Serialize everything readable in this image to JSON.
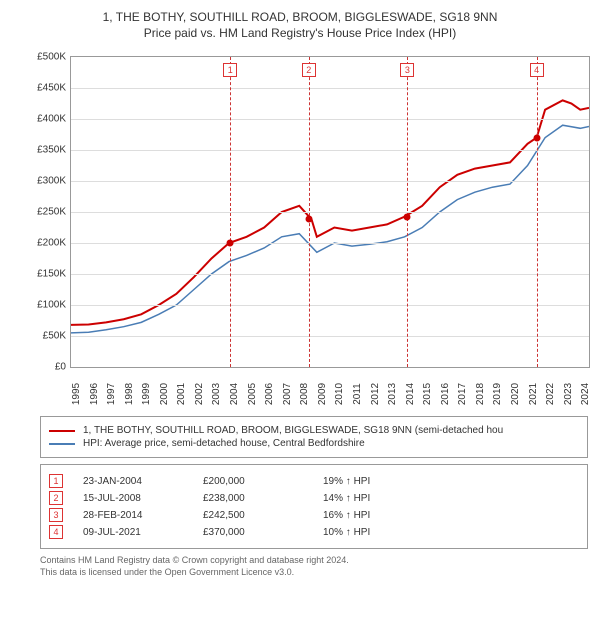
{
  "title": "1, THE BOTHY, SOUTHILL ROAD, BROOM, BIGGLESWADE, SG18 9NN",
  "subtitle": "Price paid vs. HM Land Registry's House Price Index (HPI)",
  "chart": {
    "type": "line",
    "background_color": "#ffffff",
    "grid_color": "#dddddd",
    "axis_color": "#999999",
    "title_fontsize": 12,
    "label_fontsize": 10,
    "x_min_year": 1995,
    "x_max_year": 2024.5,
    "x_ticks": [
      1995,
      1996,
      1997,
      1998,
      1999,
      2000,
      2001,
      2002,
      2003,
      2004,
      2005,
      2006,
      2007,
      2008,
      2009,
      2010,
      2011,
      2012,
      2013,
      2014,
      2015,
      2016,
      2017,
      2018,
      2019,
      2020,
      2021,
      2022,
      2023,
      2024
    ],
    "ylim": [
      0,
      500000
    ],
    "ytick_step": 50000,
    "y_prefix": "£",
    "y_suffix": "K",
    "vlines": [
      {
        "year": 2004.07,
        "label": "1"
      },
      {
        "year": 2008.54,
        "label": "2"
      },
      {
        "year": 2014.16,
        "label": "3"
      },
      {
        "year": 2021.52,
        "label": "4"
      }
    ],
    "vline_color": "#cc3333",
    "series": [
      {
        "name": "property",
        "label": "1, THE BOTHY, SOUTHILL ROAD, BROOM, BIGGLESWADE, SG18 9NN (semi-detached hou",
        "color": "#cc0000",
        "line_width": 2,
        "points": [
          [
            1995,
            68000
          ],
          [
            1996,
            68500
          ],
          [
            1997,
            72000
          ],
          [
            1998,
            77000
          ],
          [
            1999,
            85000
          ],
          [
            2000,
            100000
          ],
          [
            2001,
            118000
          ],
          [
            2002,
            145000
          ],
          [
            2003,
            175000
          ],
          [
            2004,
            200000
          ],
          [
            2005,
            210000
          ],
          [
            2006,
            225000
          ],
          [
            2007,
            250000
          ],
          [
            2008,
            260000
          ],
          [
            2008.7,
            238000
          ],
          [
            2009,
            210000
          ],
          [
            2010,
            225000
          ],
          [
            2011,
            220000
          ],
          [
            2012,
            225000
          ],
          [
            2013,
            230000
          ],
          [
            2014,
            242500
          ],
          [
            2015,
            260000
          ],
          [
            2016,
            290000
          ],
          [
            2017,
            310000
          ],
          [
            2018,
            320000
          ],
          [
            2019,
            325000
          ],
          [
            2020,
            330000
          ],
          [
            2021,
            360000
          ],
          [
            2021.52,
            370000
          ],
          [
            2022,
            415000
          ],
          [
            2023,
            430000
          ],
          [
            2023.5,
            425000
          ],
          [
            2024,
            415000
          ],
          [
            2024.5,
            418000
          ]
        ],
        "sale_points": [
          {
            "year": 2004.07,
            "price": 200000
          },
          {
            "year": 2008.54,
            "price": 238000
          },
          {
            "year": 2014.16,
            "price": 242500
          },
          {
            "year": 2021.52,
            "price": 370000
          }
        ]
      },
      {
        "name": "hpi",
        "label": "HPI: Average price, semi-detached house, Central Bedfordshire",
        "color": "#4a7db5",
        "line_width": 1.5,
        "points": [
          [
            1995,
            55000
          ],
          [
            1996,
            56000
          ],
          [
            1997,
            60000
          ],
          [
            1998,
            65000
          ],
          [
            1999,
            72000
          ],
          [
            2000,
            85000
          ],
          [
            2001,
            100000
          ],
          [
            2002,
            125000
          ],
          [
            2003,
            150000
          ],
          [
            2004,
            170000
          ],
          [
            2005,
            180000
          ],
          [
            2006,
            192000
          ],
          [
            2007,
            210000
          ],
          [
            2008,
            215000
          ],
          [
            2009,
            185000
          ],
          [
            2010,
            200000
          ],
          [
            2011,
            195000
          ],
          [
            2012,
            198000
          ],
          [
            2013,
            202000
          ],
          [
            2014,
            210000
          ],
          [
            2015,
            225000
          ],
          [
            2016,
            250000
          ],
          [
            2017,
            270000
          ],
          [
            2018,
            282000
          ],
          [
            2019,
            290000
          ],
          [
            2020,
            295000
          ],
          [
            2021,
            325000
          ],
          [
            2022,
            370000
          ],
          [
            2023,
            390000
          ],
          [
            2024,
            385000
          ],
          [
            2024.5,
            388000
          ]
        ]
      }
    ]
  },
  "legend": {
    "items": [
      {
        "color": "#cc0000",
        "label": "1, THE BOTHY, SOUTHILL ROAD, BROOM, BIGGLESWADE, SG18 9NN (semi-detached hou"
      },
      {
        "color": "#4a7db5",
        "label": "HPI: Average price, semi-detached house, Central Bedfordshire"
      }
    ]
  },
  "sales": [
    {
      "num": "1",
      "date": "23-JAN-2004",
      "price": "£200,000",
      "diff": "19% ↑ HPI"
    },
    {
      "num": "2",
      "date": "15-JUL-2008",
      "price": "£238,000",
      "diff": "14% ↑ HPI"
    },
    {
      "num": "3",
      "date": "28-FEB-2014",
      "price": "£242,500",
      "diff": "16% ↑ HPI"
    },
    {
      "num": "4",
      "date": "09-JUL-2021",
      "price": "£370,000",
      "diff": "10% ↑ HPI"
    }
  ],
  "footnote_line1": "Contains HM Land Registry data © Crown copyright and database right 2024.",
  "footnote_line2": "This data is licensed under the Open Government Licence v3.0."
}
